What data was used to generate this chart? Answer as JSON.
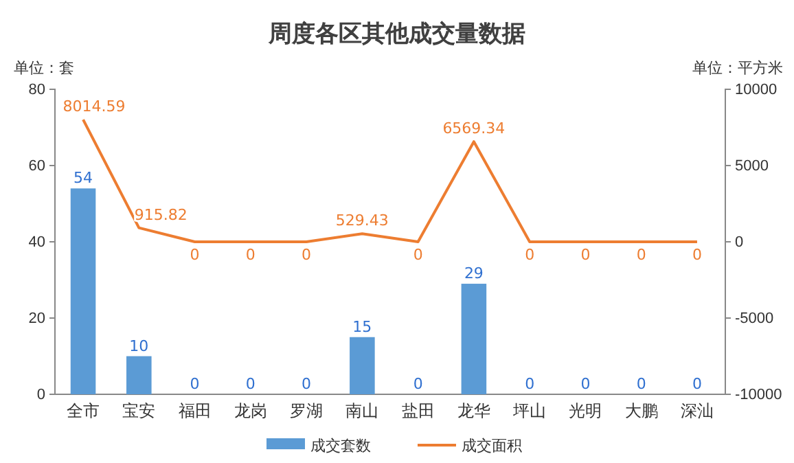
{
  "chart_data": {
    "type": "bar",
    "title": "周度各区其他成交量数据",
    "ylabel": "单位：套",
    "y2label": "单位：平方米",
    "categories": [
      "全市",
      "宝安",
      "福田",
      "龙岗",
      "罗湖",
      "南山",
      "盐田",
      "龙华",
      "坪山",
      "光明",
      "大鹏",
      "深汕"
    ],
    "series": [
      {
        "name": "成交套数",
        "color": "#5b9bd5",
        "values": [
          54,
          10,
          0,
          0,
          0,
          15,
          0,
          29,
          0,
          0,
          0,
          0
        ]
      },
      {
        "name": "成交面积",
        "type": "line",
        "axis": "y2",
        "color": "#ed7d31",
        "values": [
          8014.59,
          915.82,
          0,
          0,
          0,
          529.43,
          0,
          6569.34,
          0,
          0,
          0,
          0
        ]
      }
    ],
    "ylim": [
      0,
      80
    ],
    "yticks": [
      0,
      20,
      40,
      60,
      80
    ],
    "y2lim": [
      -10000,
      10000
    ],
    "y2ticks": [
      -10000,
      -5000,
      0,
      5000,
      10000
    ],
    "data_labels": true,
    "legend": "bottom",
    "grid": false,
    "marker": "none",
    "line_style": "solid"
  }
}
